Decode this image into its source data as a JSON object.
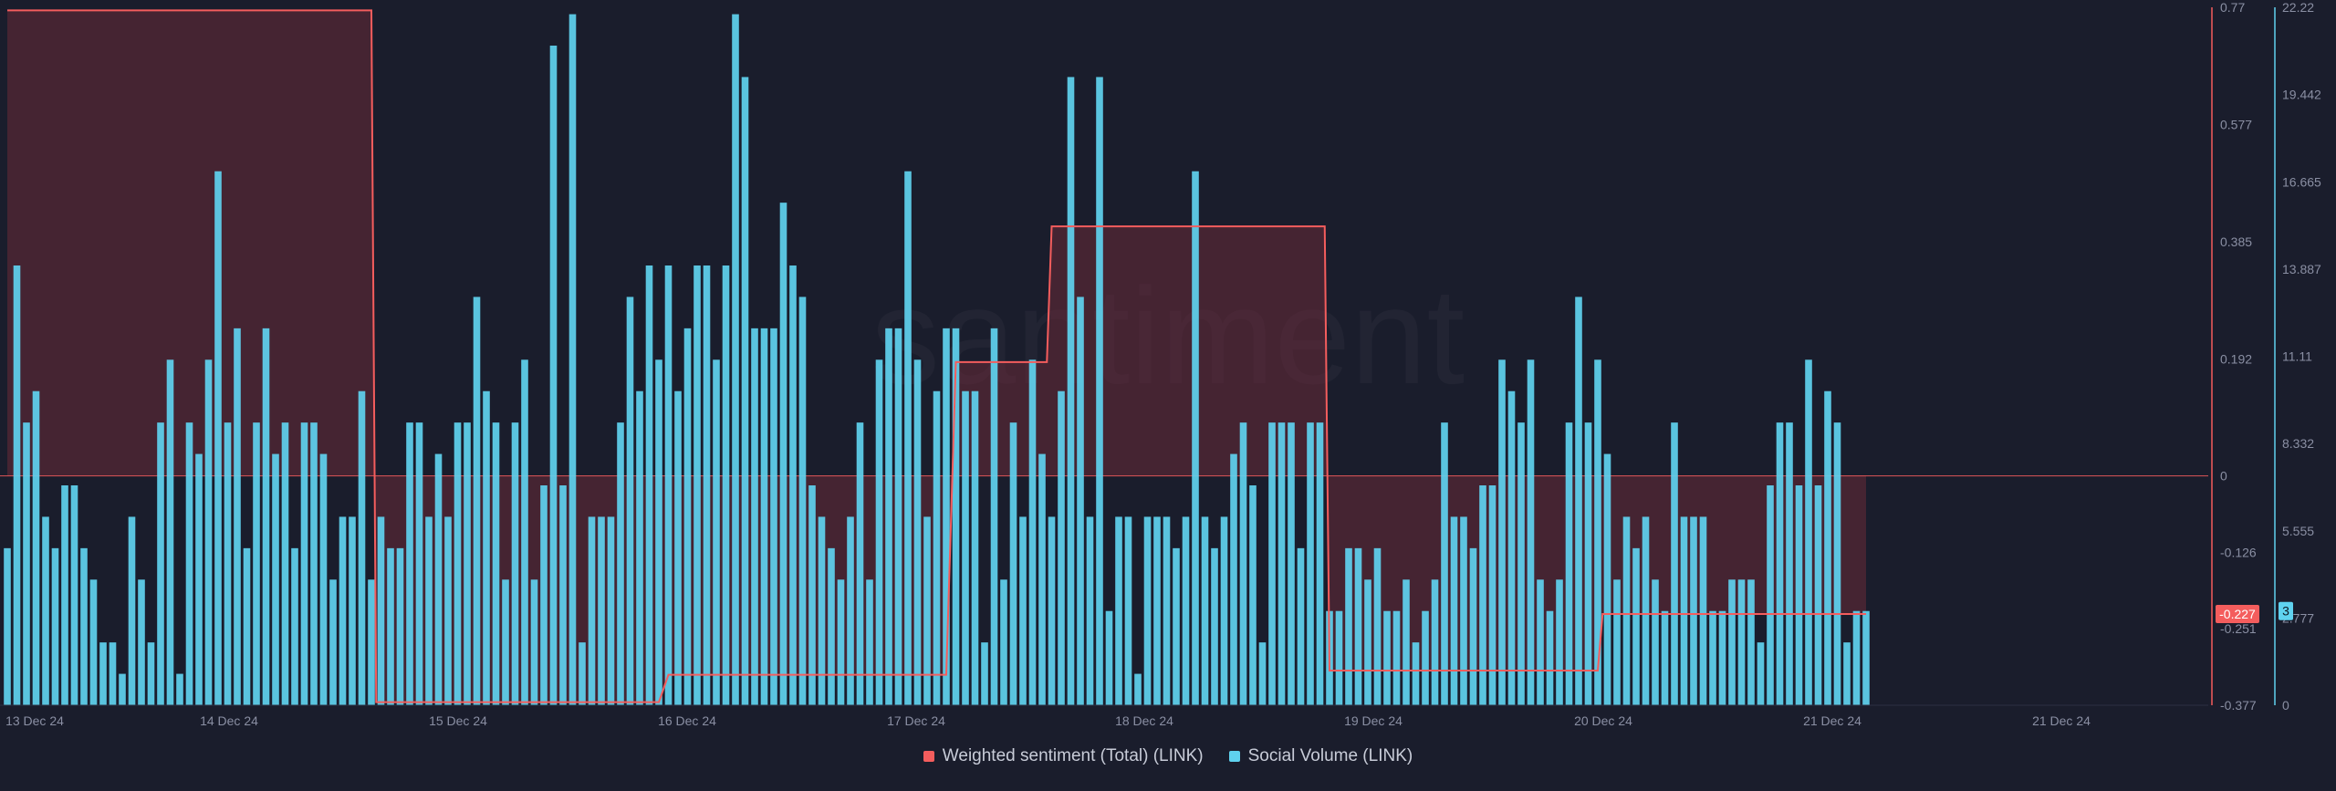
{
  "chart_data": {
    "type": "bar",
    "watermark": "santiment",
    "x_tick_labels": [
      "13 Dec 24",
      "14 Dec 24",
      "15 Dec 24",
      "16 Dec 24",
      "17 Dec 24",
      "18 Dec 24",
      "19 Dec 24",
      "20 Dec 24",
      "21 Dec 24",
      "21 Dec 24"
    ],
    "left_axis_label": "-0.227",
    "right_axis_label": "3",
    "sentiment_axis": {
      "ylim": [
        -0.377,
        0.77
      ],
      "ticks": [
        "0.77",
        "0.577",
        "0.385",
        "0.192",
        "0",
        "-0.126",
        "-0.251",
        "-0.377"
      ]
    },
    "volume_axis": {
      "ylim": [
        0,
        22.22
      ],
      "ticks": [
        "22.22",
        "19.442",
        "16.665",
        "13.887",
        "11.11",
        "8.332",
        "5.555",
        "2.777",
        "0"
      ]
    },
    "series": [
      {
        "name": "Weighted sentiment (Total) (LINK)",
        "color": "#f45d5d",
        "x": [
          "2024-12-13 00:00",
          "2024-12-14 14:00",
          "2024-12-14 14:30",
          "2024-12-15 20:00",
          "2024-12-15 21:00",
          "2024-12-17 02:00",
          "2024-12-17 03:00",
          "2024-12-17 12:30",
          "2024-12-17 13:00",
          "2024-12-18 17:30",
          "2024-12-18 18:00",
          "2024-12-19 22:00",
          "2024-12-19 22:30",
          "2024-12-21 02:00"
        ],
        "values": [
          0.765,
          0.765,
          -0.372,
          -0.372,
          -0.327,
          -0.327,
          0.187,
          0.187,
          0.41,
          0.41,
          -0.32,
          -0.32,
          -0.227,
          -0.227
        ]
      },
      {
        "name": "Social Volume (LINK)",
        "color": "#5fd2ef",
        "start": "2024-12-13 00:00",
        "interval_hours": 1,
        "values": [
          5,
          14,
          9,
          10,
          6,
          5,
          7,
          7,
          5,
          4,
          2,
          2,
          1,
          6,
          4,
          2,
          9,
          11,
          1,
          9,
          8,
          11,
          17,
          9,
          12,
          5,
          9,
          12,
          8,
          9,
          5,
          9,
          9,
          8,
          4,
          6,
          6,
          10,
          4,
          6,
          5,
          5,
          9,
          9,
          6,
          8,
          6,
          9,
          9,
          13,
          10,
          9,
          4,
          9,
          11,
          4,
          7,
          21,
          7,
          22,
          2,
          6,
          6,
          6,
          9,
          13,
          10,
          14,
          11,
          14,
          10,
          12,
          14,
          14,
          11,
          14,
          22,
          20,
          12,
          12,
          12,
          16,
          14,
          13,
          7,
          6,
          5,
          4,
          6,
          9,
          4,
          11,
          12,
          12,
          17,
          11,
          6,
          10,
          12,
          12,
          10,
          10,
          2,
          12,
          4,
          9,
          6,
          11,
          8,
          6,
          10,
          20,
          13,
          6,
          20,
          3,
          6,
          6,
          1,
          6,
          6,
          6,
          5,
          6,
          17,
          6,
          5,
          6,
          8,
          9,
          7,
          2,
          9,
          9,
          9,
          5,
          9,
          9,
          3,
          3,
          5,
          5,
          4,
          5,
          3,
          3,
          4,
          2,
          3,
          4,
          9,
          6,
          6,
          5,
          7,
          7,
          11,
          10,
          9,
          11,
          4,
          3,
          4,
          9,
          13,
          9,
          11,
          8,
          4,
          6,
          5,
          6,
          4,
          3,
          9,
          6,
          6,
          6,
          3,
          3,
          4,
          4,
          4,
          2,
          7,
          9,
          9,
          7,
          11,
          7,
          10,
          9,
          2,
          3,
          3
        ]
      }
    ],
    "legend_placement": "bottom-center",
    "grid": false
  }
}
